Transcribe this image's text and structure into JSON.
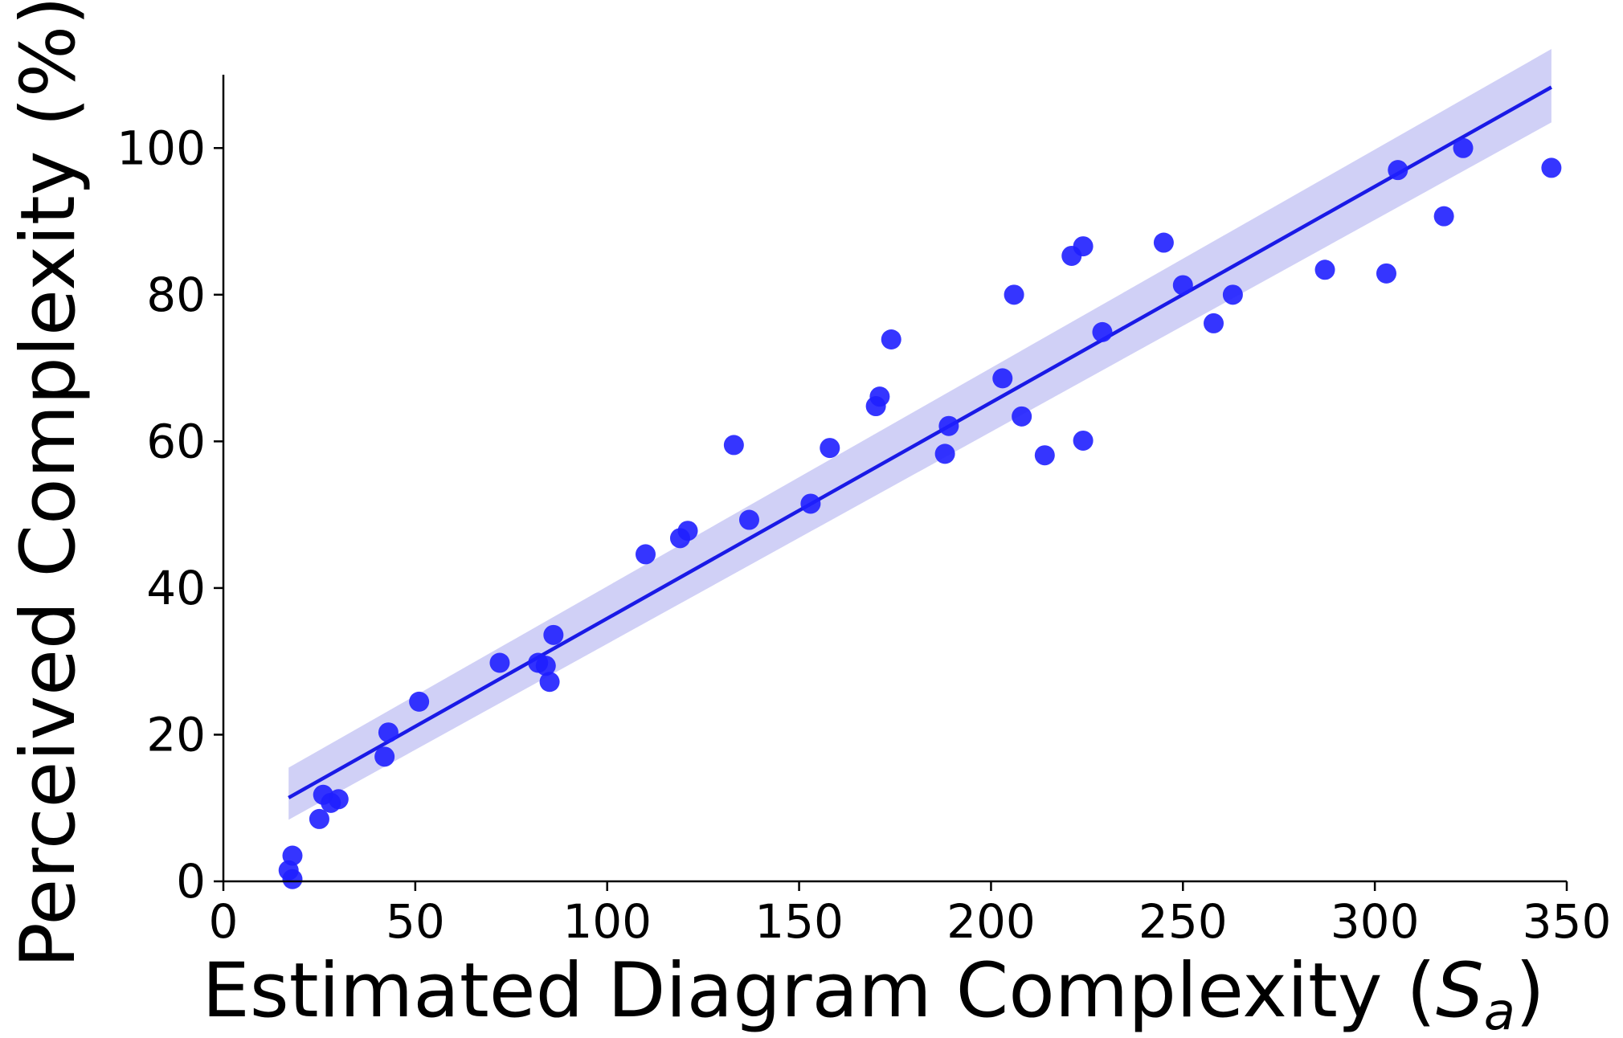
{
  "chart_data": {
    "type": "scatter",
    "xlabel": "Estimated Diagram Complexity (",
    "xlabel_symbol": "S",
    "xlabel_subscript": "a",
    "xlabel_close": ")",
    "ylabel": "Perceived Complexity (%)",
    "xlim": [
      0,
      350
    ],
    "ylim": [
      0,
      110
    ],
    "xticks": [
      0,
      50,
      100,
      150,
      200,
      250,
      300,
      350
    ],
    "xtick_labels": [
      "0",
      "50",
      "100",
      "150",
      "200",
      "250",
      "300",
      "350"
    ],
    "yticks": [
      0,
      20,
      40,
      60,
      80,
      100
    ],
    "ytick_labels": [
      "0",
      "20",
      "40",
      "60",
      "80",
      "100"
    ],
    "grid": false,
    "point_color": "#1f1fff",
    "line_color": "#1a1ae6",
    "band_color": "#c8c8f5",
    "regression": {
      "x": [
        17,
        346
      ],
      "y": [
        11.4,
        108.3
      ],
      "ci_lower": [
        8.4,
        103.5
      ],
      "ci_upper": [
        15.5,
        113.5
      ]
    },
    "points": {
      "x": [
        17,
        18,
        18,
        25,
        26,
        28,
        30,
        42,
        43,
        51,
        72,
        82,
        84,
        85,
        86,
        110,
        119,
        121,
        133,
        137,
        153,
        158,
        170,
        171,
        174,
        188,
        189,
        203,
        206,
        208,
        214,
        221,
        224,
        224,
        229,
        245,
        250,
        258,
        263,
        287,
        303,
        306,
        318,
        323,
        346
      ],
      "y": [
        1.5,
        0.3,
        3.5,
        8.5,
        11.8,
        10.7,
        11.2,
        17,
        20.3,
        24.5,
        29.8,
        29.8,
        29.4,
        27.2,
        33.6,
        44.6,
        46.8,
        47.8,
        59.5,
        49.3,
        51.5,
        59.1,
        64.8,
        66.1,
        73.9,
        58.3,
        62.1,
        68.6,
        80,
        63.4,
        58.1,
        85.3,
        86.6,
        60.1,
        74.9,
        87.1,
        81.3,
        76.1,
        80,
        83.4,
        82.9,
        97,
        90.7,
        100,
        97.3
      ]
    }
  }
}
